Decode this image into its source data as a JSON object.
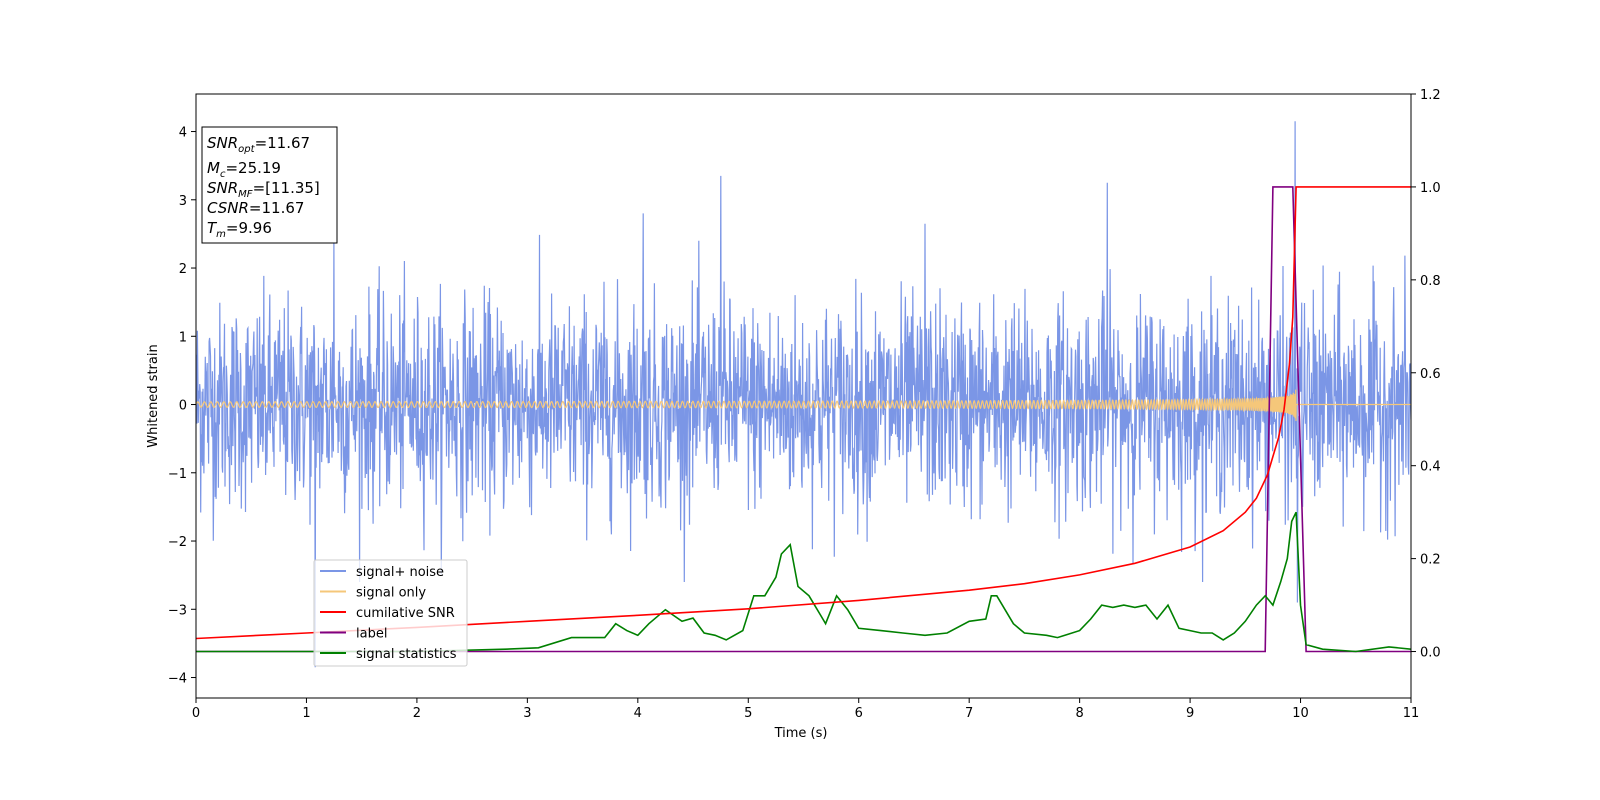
{
  "chart_data": {
    "type": "line",
    "title": "",
    "xlabel": "Time (s)",
    "ylabel": "Whitened strain",
    "xlim": [
      0,
      11
    ],
    "ylim": [
      -4.3,
      4.55
    ],
    "ylim_right": [
      -0.1,
      1.2
    ],
    "xticks": [
      "0",
      "1",
      "2",
      "3",
      "4",
      "5",
      "6",
      "7",
      "8",
      "9",
      "10",
      "11"
    ],
    "yticks_left": [
      "−4",
      "−3",
      "−2",
      "−1",
      "0",
      "1",
      "2",
      "3",
      "4"
    ],
    "yticks_right": [
      "0.0",
      "0.2",
      "0.4",
      "0.6",
      "0.8",
      "1.0",
      "1.2"
    ],
    "grid": false,
    "legend_position": "lower-left",
    "info_box": {
      "snr_opt": {
        "main": "SNR",
        "sub": "opt",
        "value": "=11.67"
      },
      "mc": {
        "main": "M",
        "sub": "c",
        "value": "=25.19"
      },
      "snr_mf": {
        "main": "SNR",
        "sub": "MF",
        "value": "=[11.35]"
      },
      "csnr": {
        "main": "CSNR",
        "sub": "",
        "value": "=11.67"
      },
      "tm": {
        "main": "T",
        "sub": "m",
        "value": "=9.96"
      }
    },
    "series": [
      {
        "name": "signal+ noise",
        "color": "#7b96e6",
        "axis": "left",
        "description_kind": "noise",
        "sigma": 0.75,
        "spikes": [
          [
            1.08,
            -3.85
          ],
          [
            1.25,
            2.45
          ],
          [
            4.75,
            3.35
          ],
          [
            8.25,
            3.25
          ],
          [
            9.95,
            4.15
          ],
          [
            9.97,
            -2.9
          ],
          [
            4.05,
            2.8
          ],
          [
            6.6,
            2.65
          ]
        ]
      },
      {
        "name": "signal only",
        "color": "#f5c77a",
        "axis": "left",
        "chirp_merger_time": 9.96,
        "peak_amplitude": 1.7
      },
      {
        "name": "cumilative SNR",
        "color": "#ff0000",
        "axis": "right",
        "x": [
          0,
          1,
          2,
          3,
          4,
          5,
          6,
          7,
          7.5,
          8,
          8.5,
          9,
          9.3,
          9.5,
          9.6,
          9.7,
          9.8,
          9.85,
          9.9,
          9.93,
          9.96,
          11
        ],
        "y": [
          0.028,
          0.04,
          0.052,
          0.065,
          0.078,
          0.092,
          0.11,
          0.132,
          0.146,
          0.165,
          0.19,
          0.225,
          0.26,
          0.3,
          0.33,
          0.38,
          0.46,
          0.52,
          0.62,
          0.72,
          1.0,
          1.0
        ]
      },
      {
        "name": "label",
        "color": "#800080",
        "axis": "right",
        "x": [
          0,
          9.68,
          9.75,
          9.93,
          9.96,
          10.05,
          11
        ],
        "y": [
          0,
          0,
          1.0,
          1.0,
          0.75,
          0,
          0
        ]
      },
      {
        "name": "signal statistics",
        "color": "#008000",
        "axis": "right",
        "x": [
          0,
          2,
          2.8,
          3.1,
          3.4,
          3.7,
          3.8,
          3.9,
          4.0,
          4.1,
          4.25,
          4.4,
          4.5,
          4.6,
          4.7,
          4.8,
          4.95,
          5.05,
          5.15,
          5.25,
          5.3,
          5.38,
          5.45,
          5.55,
          5.65,
          5.7,
          5.8,
          5.9,
          6.0,
          6.2,
          6.4,
          6.6,
          6.8,
          7.0,
          7.15,
          7.2,
          7.25,
          7.4,
          7.5,
          7.7,
          7.8,
          8.0,
          8.1,
          8.2,
          8.3,
          8.4,
          8.5,
          8.6,
          8.7,
          8.8,
          8.9,
          9.0,
          9.1,
          9.2,
          9.3,
          9.4,
          9.5,
          9.6,
          9.68,
          9.75,
          9.82,
          9.88,
          9.92,
          9.96,
          10.0,
          10.05,
          10.2,
          10.5,
          10.8,
          11
        ],
        "y": [
          0.0,
          0.0,
          0.005,
          0.008,
          0.03,
          0.03,
          0.06,
          0.045,
          0.035,
          0.06,
          0.09,
          0.065,
          0.072,
          0.04,
          0.035,
          0.025,
          0.045,
          0.12,
          0.12,
          0.16,
          0.21,
          0.23,
          0.14,
          0.12,
          0.08,
          0.06,
          0.12,
          0.09,
          0.05,
          0.045,
          0.04,
          0.035,
          0.04,
          0.065,
          0.07,
          0.12,
          0.12,
          0.06,
          0.04,
          0.035,
          0.03,
          0.045,
          0.07,
          0.1,
          0.095,
          0.1,
          0.095,
          0.1,
          0.07,
          0.1,
          0.05,
          0.045,
          0.04,
          0.04,
          0.025,
          0.04,
          0.065,
          0.1,
          0.12,
          0.1,
          0.15,
          0.2,
          0.28,
          0.3,
          0.1,
          0.015,
          0.005,
          0.0,
          0.01,
          0.005
        ]
      }
    ]
  }
}
